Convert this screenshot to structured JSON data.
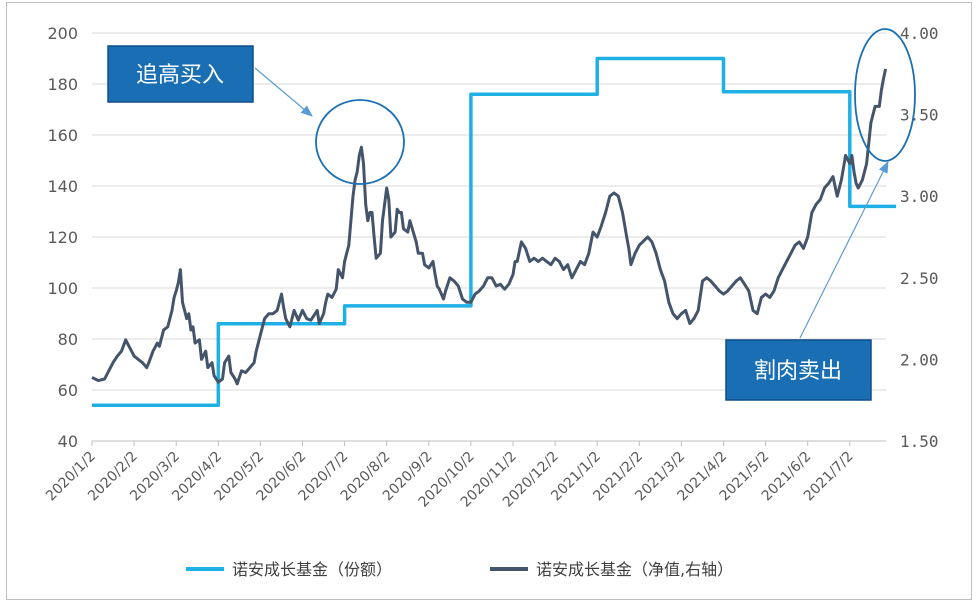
{
  "chart_data": {
    "type": "line",
    "title": "",
    "x_tick_labels": [
      "2020/1/2",
      "2020/2/2",
      "2020/3/2",
      "2020/4/2",
      "2020/5/2",
      "2020/6/2",
      "2020/7/2",
      "2020/8/2",
      "2020/9/2",
      "2020/10/2",
      "2020/11/2",
      "2020/12/2",
      "2021/1/2",
      "2021/2/2",
      "2021/3/2",
      "2021/4/2",
      "2021/5/2",
      "2021/6/2",
      "2021/7/2"
    ],
    "y_left": {
      "ticks": [
        40,
        60,
        80,
        100,
        120,
        140,
        160,
        180,
        200
      ],
      "ylim": [
        40,
        200
      ]
    },
    "y_right": {
      "ticks": [
        "1.50",
        "2.00",
        "2.50",
        "3.00",
        "3.50",
        "4.00"
      ],
      "ylim": [
        1.5,
        4.0
      ]
    },
    "x_domain_months": [
      0,
      19.2
    ],
    "grid": "horizontal",
    "legend_position": "bottom",
    "series": [
      {
        "name": "诺安成长基金（份额）",
        "axis": "left",
        "color": "#1fb1e6",
        "points": [
          [
            0,
            54
          ],
          [
            3,
            54
          ],
          [
            3,
            86
          ],
          [
            6,
            86
          ],
          [
            6,
            93
          ],
          [
            9,
            93
          ],
          [
            9,
            176
          ],
          [
            12,
            176
          ],
          [
            12,
            190
          ],
          [
            15,
            190
          ],
          [
            15,
            177
          ],
          [
            18,
            177
          ],
          [
            18,
            132
          ],
          [
            19.1,
            132
          ]
        ]
      },
      {
        "name": "诺安成长基金（净值,右轴）",
        "axis": "right",
        "color": "#44546a",
        "points": [
          [
            0,
            1.89
          ],
          [
            0.15,
            1.87
          ],
          [
            0.3,
            1.88
          ],
          [
            0.5,
            1.98
          ],
          [
            0.6,
            2.02
          ],
          [
            0.7,
            2.05
          ],
          [
            0.8,
            2.12
          ],
          [
            0.9,
            2.07
          ],
          [
            1.0,
            2.02
          ],
          [
            1.1,
            2.0
          ],
          [
            1.2,
            1.98
          ],
          [
            1.3,
            1.95
          ],
          [
            1.35,
            1.98
          ],
          [
            1.45,
            2.05
          ],
          [
            1.55,
            2.1
          ],
          [
            1.6,
            2.08
          ],
          [
            1.7,
            2.18
          ],
          [
            1.8,
            2.2
          ],
          [
            1.9,
            2.3
          ],
          [
            1.95,
            2.38
          ],
          [
            2.0,
            2.42
          ],
          [
            2.05,
            2.47
          ],
          [
            2.1,
            2.55
          ],
          [
            2.15,
            2.35
          ],
          [
            2.25,
            2.25
          ],
          [
            2.3,
            2.28
          ],
          [
            2.35,
            2.18
          ],
          [
            2.4,
            2.2
          ],
          [
            2.45,
            2.1
          ],
          [
            2.55,
            2.12
          ],
          [
            2.6,
            2.0
          ],
          [
            2.7,
            2.05
          ],
          [
            2.75,
            1.95
          ],
          [
            2.85,
            1.98
          ],
          [
            2.9,
            1.9
          ],
          [
            3.0,
            1.86
          ],
          [
            3.1,
            1.88
          ],
          [
            3.15,
            1.98
          ],
          [
            3.25,
            2.02
          ],
          [
            3.3,
            1.92
          ],
          [
            3.4,
            1.88
          ],
          [
            3.45,
            1.85
          ],
          [
            3.55,
            1.93
          ],
          [
            3.65,
            1.92
          ],
          [
            3.75,
            1.95
          ],
          [
            3.85,
            1.98
          ],
          [
            3.9,
            2.05
          ],
          [
            4.0,
            2.15
          ],
          [
            4.1,
            2.25
          ],
          [
            4.2,
            2.28
          ],
          [
            4.3,
            2.28
          ],
          [
            4.4,
            2.3
          ],
          [
            4.5,
            2.4
          ],
          [
            4.55,
            2.32
          ],
          [
            4.6,
            2.25
          ],
          [
            4.7,
            2.2
          ],
          [
            4.8,
            2.3
          ],
          [
            4.9,
            2.24
          ],
          [
            5.0,
            2.3
          ],
          [
            5.1,
            2.25
          ],
          [
            5.2,
            2.24
          ],
          [
            5.3,
            2.28
          ],
          [
            5.35,
            2.3
          ],
          [
            5.4,
            2.22
          ],
          [
            5.5,
            2.28
          ],
          [
            5.55,
            2.35
          ],
          [
            5.6,
            2.4
          ],
          [
            5.7,
            2.38
          ],
          [
            5.8,
            2.43
          ],
          [
            5.85,
            2.55
          ],
          [
            5.95,
            2.5
          ],
          [
            6.0,
            2.6
          ],
          [
            6.05,
            2.65
          ],
          [
            6.1,
            2.7
          ],
          [
            6.2,
            3.0
          ],
          [
            6.25,
            3.1
          ],
          [
            6.3,
            3.15
          ],
          [
            6.35,
            3.25
          ],
          [
            6.4,
            3.3
          ],
          [
            6.45,
            3.2
          ],
          [
            6.5,
            2.95
          ],
          [
            6.55,
            2.85
          ],
          [
            6.6,
            2.9
          ],
          [
            6.65,
            2.9
          ],
          [
            6.7,
            2.75
          ],
          [
            6.75,
            2.62
          ],
          [
            6.85,
            2.65
          ],
          [
            6.9,
            2.85
          ],
          [
            7.0,
            3.05
          ],
          [
            7.05,
            2.98
          ],
          [
            7.1,
            2.75
          ],
          [
            7.2,
            2.78
          ],
          [
            7.25,
            2.92
          ],
          [
            7.3,
            2.9
          ],
          [
            7.35,
            2.9
          ],
          [
            7.4,
            2.8
          ],
          [
            7.5,
            2.78
          ],
          [
            7.55,
            2.85
          ],
          [
            7.7,
            2.72
          ],
          [
            7.75,
            2.65
          ],
          [
            7.85,
            2.65
          ],
          [
            7.9,
            2.58
          ],
          [
            8.0,
            2.56
          ],
          [
            8.1,
            2.6
          ],
          [
            8.15,
            2.52
          ],
          [
            8.2,
            2.45
          ],
          [
            8.25,
            2.43
          ],
          [
            8.35,
            2.37
          ],
          [
            8.4,
            2.42
          ],
          [
            8.5,
            2.5
          ],
          [
            8.6,
            2.48
          ],
          [
            8.7,
            2.45
          ],
          [
            8.8,
            2.37
          ],
          [
            8.9,
            2.35
          ],
          [
            9.0,
            2.35
          ],
          [
            9.1,
            2.4
          ],
          [
            9.2,
            2.42
          ],
          [
            9.3,
            2.45
          ],
          [
            9.4,
            2.5
          ],
          [
            9.5,
            2.5
          ],
          [
            9.6,
            2.45
          ],
          [
            9.7,
            2.46
          ],
          [
            9.8,
            2.43
          ],
          [
            9.9,
            2.46
          ],
          [
            10.0,
            2.52
          ],
          [
            10.05,
            2.6
          ],
          [
            10.1,
            2.6
          ],
          [
            10.2,
            2.72
          ],
          [
            10.3,
            2.68
          ],
          [
            10.4,
            2.6
          ],
          [
            10.5,
            2.62
          ],
          [
            10.6,
            2.6
          ],
          [
            10.7,
            2.62
          ],
          [
            10.8,
            2.6
          ],
          [
            10.9,
            2.58
          ],
          [
            11.0,
            2.62
          ],
          [
            11.1,
            2.6
          ],
          [
            11.2,
            2.55
          ],
          [
            11.3,
            2.58
          ],
          [
            11.4,
            2.5
          ],
          [
            11.5,
            2.55
          ],
          [
            11.6,
            2.6
          ],
          [
            11.7,
            2.58
          ],
          [
            11.8,
            2.65
          ],
          [
            11.9,
            2.78
          ],
          [
            12.0,
            2.75
          ],
          [
            12.1,
            2.82
          ],
          [
            12.2,
            2.9
          ],
          [
            12.3,
            3.0
          ],
          [
            12.4,
            3.02
          ],
          [
            12.5,
            3.0
          ],
          [
            12.6,
            2.9
          ],
          [
            12.7,
            2.75
          ],
          [
            12.75,
            2.68
          ],
          [
            12.8,
            2.58
          ],
          [
            12.9,
            2.65
          ],
          [
            13.0,
            2.7
          ],
          [
            13.2,
            2.75
          ],
          [
            13.3,
            2.72
          ],
          [
            13.4,
            2.65
          ],
          [
            13.5,
            2.55
          ],
          [
            13.6,
            2.48
          ],
          [
            13.7,
            2.35
          ],
          [
            13.8,
            2.28
          ],
          [
            13.9,
            2.25
          ],
          [
            14.0,
            2.28
          ],
          [
            14.1,
            2.3
          ],
          [
            14.2,
            2.22
          ],
          [
            14.3,
            2.25
          ],
          [
            14.4,
            2.3
          ],
          [
            14.5,
            2.48
          ],
          [
            14.6,
            2.5
          ],
          [
            14.7,
            2.48
          ],
          [
            14.8,
            2.45
          ],
          [
            14.9,
            2.42
          ],
          [
            15.0,
            2.4
          ],
          [
            15.1,
            2.42
          ],
          [
            15.2,
            2.45
          ],
          [
            15.3,
            2.48
          ],
          [
            15.4,
            2.5
          ],
          [
            15.5,
            2.46
          ],
          [
            15.6,
            2.42
          ],
          [
            15.7,
            2.3
          ],
          [
            15.8,
            2.28
          ],
          [
            15.9,
            2.38
          ],
          [
            16.0,
            2.4
          ],
          [
            16.1,
            2.38
          ],
          [
            16.2,
            2.42
          ],
          [
            16.3,
            2.5
          ],
          [
            16.4,
            2.55
          ],
          [
            16.5,
            2.6
          ],
          [
            16.6,
            2.65
          ],
          [
            16.7,
            2.7
          ],
          [
            16.8,
            2.72
          ],
          [
            16.9,
            2.68
          ],
          [
            17.0,
            2.75
          ],
          [
            17.1,
            2.9
          ],
          [
            17.2,
            2.95
          ],
          [
            17.3,
            2.98
          ],
          [
            17.4,
            3.05
          ],
          [
            17.5,
            3.08
          ],
          [
            17.6,
            3.12
          ],
          [
            17.7,
            3.0
          ],
          [
            17.8,
            3.1
          ],
          [
            17.9,
            3.25
          ],
          [
            18.0,
            3.2
          ],
          [
            18.05,
            3.25
          ],
          [
            18.1,
            3.15
          ],
          [
            18.15,
            3.08
          ],
          [
            18.2,
            3.05
          ],
          [
            18.3,
            3.1
          ],
          [
            18.4,
            3.2
          ],
          [
            18.5,
            3.45
          ],
          [
            18.6,
            3.55
          ],
          [
            18.7,
            3.55
          ],
          [
            18.75,
            3.65
          ],
          [
            18.8,
            3.72
          ],
          [
            18.85,
            3.78
          ]
        ]
      }
    ]
  },
  "annotations": {
    "buy_label": "追高买入",
    "sell_label": "割肉卖出"
  },
  "legend": [
    {
      "label": "诺安成长基金（份额）",
      "color": "#1fb1e6"
    },
    {
      "label": "诺安成长基金（净值,右轴）",
      "color": "#44546a"
    }
  ],
  "colors": {
    "callout_box": "#1a6fb4",
    "callout_border": "#0f4e8a",
    "circle": "#1a6fb4",
    "arrow": "#5b9bd5"
  }
}
